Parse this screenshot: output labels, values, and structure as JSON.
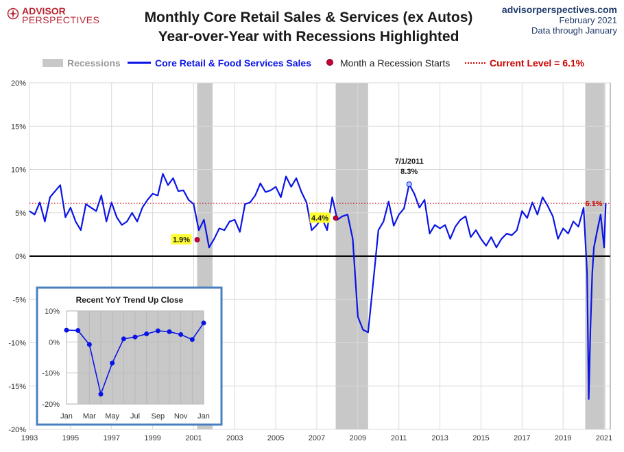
{
  "header": {
    "logo_top": "ADVISOR",
    "logo_bottom": "PERSPECTIVES",
    "title_line1": "Monthly Core Retail Sales & Services (ex Autos)",
    "title_line2": "Year-over-Year with Recessions Highlighted",
    "source_site": "advisorperspectives.com",
    "source_date": "February 2021",
    "source_note": "Data through January"
  },
  "legend": {
    "recessions": "Recessions",
    "series": "Core Retail & Food Services Sales",
    "recession_start": "Month a Recession Starts",
    "current_level": "Current Level = 6.1%"
  },
  "colors": {
    "series": "#0a14e6",
    "recession": "#c8c8c8",
    "current_level": "#cc0000",
    "recession_marker": "#cc0033",
    "highlight_label": "#ffff33",
    "title": "#1a1a1a",
    "source": "#1f3a6a",
    "inset_border": "#4a7fbf"
  },
  "chart_data": [
    {
      "type": "line",
      "xlim": [
        1993.0,
        2021.3
      ],
      "ylim": [
        -20,
        20
      ],
      "y_ticks": [
        20,
        15,
        10,
        5,
        0,
        -5,
        -10,
        -15,
        -20
      ],
      "y_tick_labels": [
        "20%",
        "15%",
        "10%",
        "5%",
        "0%",
        "-5%",
        "-10%",
        "-15%",
        "-20%"
      ],
      "x_ticks": [
        1993,
        1995,
        1997,
        1999,
        2001,
        2003,
        2005,
        2007,
        2009,
        2011,
        2013,
        2015,
        2017,
        2019,
        2021
      ],
      "x_tick_labels": [
        "1993",
        "1995",
        "1997",
        "1999",
        "2001",
        "2003",
        "2005",
        "2007",
        "2009",
        "2011",
        "2013",
        "2015",
        "2017",
        "2019",
        "2021"
      ],
      "grid": true,
      "recessions": [
        [
          2001.17,
          2001.92
        ],
        [
          2007.92,
          2009.5
        ],
        [
          2020.08,
          2021.05
        ]
      ],
      "current_level": 6.1,
      "current_level_label": "6.1%",
      "series": [
        {
          "name": "Core Retail & Food Services Sales",
          "x": [
            1993.0,
            1993.25,
            1993.5,
            1993.75,
            1994.0,
            1994.25,
            1994.5,
            1994.75,
            1995.0,
            1995.25,
            1995.5,
            1995.75,
            1996.0,
            1996.25,
            1996.5,
            1996.75,
            1997.0,
            1997.25,
            1997.5,
            1997.75,
            1998.0,
            1998.25,
            1998.5,
            1998.75,
            1999.0,
            1999.25,
            1999.5,
            1999.75,
            2000.0,
            2000.25,
            2000.5,
            2000.75,
            2001.0,
            2001.25,
            2001.5,
            2001.75,
            2002.0,
            2002.25,
            2002.5,
            2002.75,
            2003.0,
            2003.25,
            2003.5,
            2003.75,
            2004.0,
            2004.25,
            2004.5,
            2004.75,
            2005.0,
            2005.25,
            2005.5,
            2005.75,
            2006.0,
            2006.25,
            2006.5,
            2006.75,
            2007.0,
            2007.25,
            2007.5,
            2007.75,
            2008.0,
            2008.25,
            2008.5,
            2008.75,
            2009.0,
            2009.25,
            2009.5,
            2009.75,
            2010.0,
            2010.25,
            2010.5,
            2010.75,
            2011.0,
            2011.25,
            2011.5,
            2011.75,
            2012.0,
            2012.25,
            2012.5,
            2012.75,
            2013.0,
            2013.25,
            2013.5,
            2013.75,
            2014.0,
            2014.25,
            2014.5,
            2014.75,
            2015.0,
            2015.25,
            2015.5,
            2015.75,
            2016.0,
            2016.25,
            2016.5,
            2016.75,
            2017.0,
            2017.25,
            2017.5,
            2017.75,
            2018.0,
            2018.25,
            2018.5,
            2018.75,
            2019.0,
            2019.25,
            2019.5,
            2019.75,
            2020.0,
            2020.17,
            2020.25,
            2020.33,
            2020.42,
            2020.5,
            2020.67,
            2020.83,
            2021.0,
            2021.08
          ],
          "y": [
            5.2,
            4.8,
            6.2,
            4.0,
            6.8,
            7.5,
            8.2,
            4.5,
            5.6,
            4.0,
            3.0,
            6.0,
            5.6,
            5.2,
            7.0,
            4.0,
            6.2,
            4.5,
            3.6,
            4.0,
            5.0,
            4.0,
            5.6,
            6.5,
            7.2,
            7.0,
            9.5,
            8.2,
            9.0,
            7.5,
            7.6,
            6.5,
            6.0,
            3.0,
            4.2,
            1.0,
            2.0,
            3.2,
            3.0,
            4.0,
            4.2,
            2.8,
            6.0,
            6.2,
            7.0,
            8.4,
            7.4,
            7.6,
            8.0,
            6.8,
            9.2,
            8.0,
            9.0,
            7.4,
            6.2,
            3.0,
            3.6,
            4.4,
            3.0,
            6.8,
            4.2,
            4.6,
            4.8,
            2.0,
            -7.0,
            -8.5,
            -8.8,
            -3.0,
            3.0,
            4.0,
            6.3,
            3.5,
            4.8,
            5.5,
            8.3,
            7.2,
            5.6,
            6.5,
            2.6,
            3.6,
            3.2,
            3.6,
            2.0,
            3.4,
            4.2,
            4.6,
            2.2,
            3.0,
            2.0,
            1.2,
            2.2,
            1.0,
            2.0,
            2.6,
            2.4,
            3.0,
            5.2,
            4.4,
            6.2,
            4.8,
            6.8,
            5.8,
            4.6,
            2.0,
            3.2,
            2.6,
            4.0,
            3.4,
            5.6,
            -2.0,
            -16.5,
            -8.5,
            -2.0,
            1.0,
            3.0,
            4.8,
            1.0,
            6.1
          ]
        }
      ],
      "annotations": [
        {
          "x": 2011.5,
          "y": 8.3,
          "text": "7/1/2011",
          "value_text": "8.3%"
        },
        {
          "x": 2001.17,
          "y": 1.9,
          "text": "1.9%",
          "recession_start": true
        },
        {
          "x": 2007.92,
          "y": 4.4,
          "text": "4.4%",
          "recession_start": true
        }
      ]
    },
    {
      "type": "line",
      "title": "Recent  YoY Trend Up Close",
      "ylim": [
        -20,
        10
      ],
      "y_ticks": [
        10,
        0,
        -10,
        -20
      ],
      "y_tick_labels": [
        "10%",
        "0%",
        "-10%",
        "-20%"
      ],
      "categories": [
        "Jan",
        "Feb",
        "Mar",
        "Apr",
        "May",
        "Jun",
        "Jul",
        "Aug",
        "Sep",
        "Oct",
        "Nov",
        "Dec",
        "Jan"
      ],
      "x_tick_labels": [
        "Jan",
        "Mar",
        "May",
        "Jul",
        "Sep",
        "Nov",
        "Jan"
      ],
      "shaded_range": [
        1,
        12
      ],
      "values": [
        3.8,
        3.7,
        -0.8,
        -16.8,
        -6.8,
        1.0,
        1.6,
        2.6,
        3.6,
        3.3,
        2.4,
        0.8,
        6.1
      ]
    }
  ]
}
